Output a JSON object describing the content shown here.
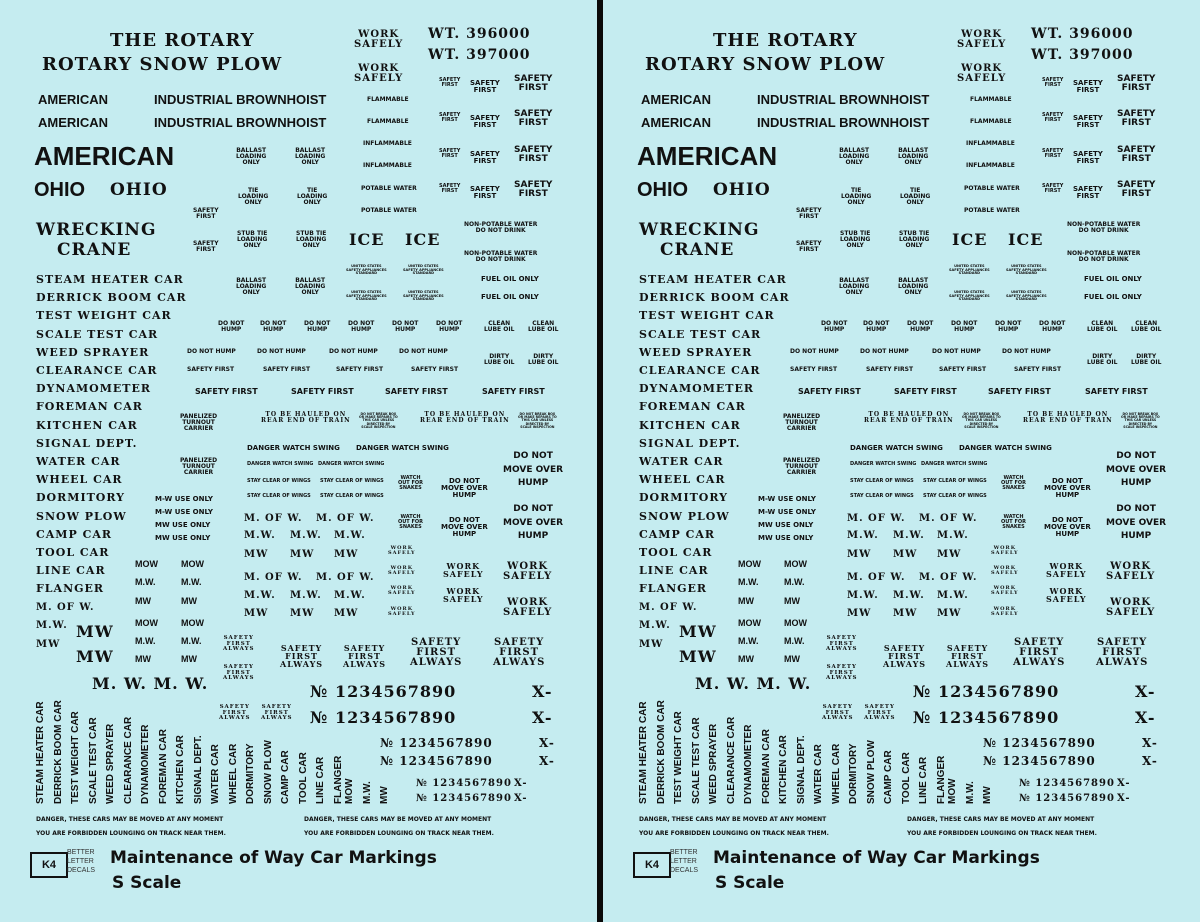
{
  "sheet": {
    "title_1": "THE ROTARY",
    "title_2": "ROTARY SNOW PLOW",
    "american": "AMERICAN",
    "industrial_brownhoist": "INDUSTRIAL BROWNHOIST",
    "american_large": "AMERICAN",
    "ohio": "OHIO",
    "wrecking": "WRECKING",
    "crane": "CRANE",
    "car_names": [
      "STEAM HEATER CAR",
      "DERRICK BOOM CAR",
      "TEST WEIGHT CAR",
      "SCALE TEST CAR",
      "WEED SPRAYER",
      "CLEARANCE CAR",
      "DYNAMOMETER",
      "FOREMAN CAR",
      "KITCHEN CAR",
      "SIGNAL DEPT.",
      "WATER CAR",
      "WHEEL CAR",
      "DORMITORY",
      "SNOW PLOW",
      "CAMP CAR",
      "TOOL CAR",
      "LINE CAR",
      "FLANGER"
    ],
    "m_of_w": "M. OF W.",
    "mdotw": "M.W.",
    "mw": "MW",
    "mw_big": "MW",
    "mow": "MOW",
    "mw_spaced": "M. W.  M. W.",
    "work_safely": "WORK\nSAFELY",
    "wt_1": "WT. 396000",
    "wt_2": "WT. 397000",
    "safety_first": "SAFETY\nFIRST",
    "safety_first_line": "SAFETY FIRST",
    "flammable": "FLAMMABLE",
    "inflammable": "INFLAMMABLE",
    "potable_water": "POTABLE WATER",
    "non_potable": "NON-POTABLE WATER\nDO NOT DRINK",
    "ballast_loading": "BALLAST\nLOADING\nONLY",
    "tie_loading": "TIE\nLOADING\nONLY",
    "stub_tie": "STUB TIE\nLOADING\nONLY",
    "ice": "ICE",
    "usa_standard": "UNITED STATES\nSAFETY APPLIANCES\nSTANDARD",
    "fuel_oil": "FUEL OIL ONLY",
    "do_not_hump": "DO NOT\nHUMP",
    "do_not_hump_line": "DO NOT HUMP",
    "clean_lube": "CLEAN\nLUBE OIL",
    "dirty_lube": "DIRTY\nLUBE OIL",
    "panelized": "PANELIZED\nTURNOUT\nCARRIER",
    "hauled": "TO BE HAULED ON\nREAR END OF TRAIN",
    "do_not_break": "DO NOT BREAK BOX\nOR MAKE REPAIRS TO\nTHIS CAR UNLESS\nDIRECTED BY\nSCALE INSPECTION",
    "danger_swing": "DANGER WATCH SWING",
    "stay_clear": "STAY CLEAR OF WINGS",
    "watch_snakes": "WATCH\nOUT FOR\nSNAKES",
    "do_not_move_over_hump": "DO NOT\nMOVE OVER\nHUMP",
    "mw_use_only": "M-W USE ONLY",
    "mw_use_only_2": "MW USE ONLY",
    "safety_first_always": "SAFETY\nFIRST\nALWAYS",
    "number_1": "№ 1234567890",
    "x_dash": "X-",
    "danger_cars": "DANGER, THESE CARS MAY BE MOVED AT ANY MOMENT",
    "forbidden": "YOU ARE FORBIDDEN LOUNGING ON TRACK NEAR THEM.",
    "vert_extra": [
      "MOW",
      "M.W.",
      "MW"
    ],
    "logo_mark": "K4",
    "logo_text": "BETTER\nLETTER\nDECALS",
    "caption_1": "Maintenance of Way Car Markings",
    "caption_2": "S Scale"
  }
}
